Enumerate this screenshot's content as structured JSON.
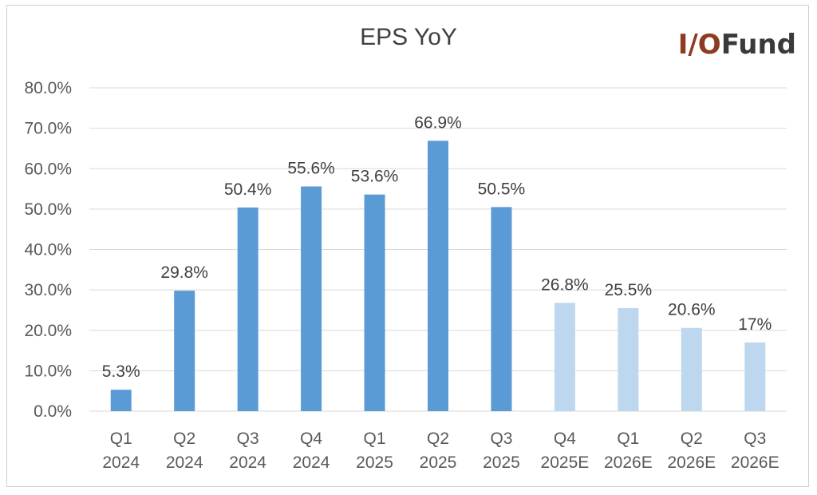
{
  "logo": {
    "part1": "I/O",
    "part2": "Fund"
  },
  "colors": {
    "actual": "#5b9bd5",
    "estimate": "#bdd7ee",
    "grid": "#d9d9d9",
    "logo_accent": "#8e3b22"
  },
  "chart_data": {
    "type": "bar",
    "title": "EPS YoY",
    "xlabel": "",
    "ylabel": "",
    "ylim": [
      0,
      80
    ],
    "yticks": [
      "0.0%",
      "10.0%",
      "20.0%",
      "30.0%",
      "40.0%",
      "50.0%",
      "60.0%",
      "70.0%",
      "80.0%"
    ],
    "grid": true,
    "legend": "none",
    "categories": [
      [
        "Q1",
        "2024"
      ],
      [
        "Q2",
        "2024"
      ],
      [
        "Q3",
        "2024"
      ],
      [
        "Q4",
        "2024"
      ],
      [
        "Q1",
        "2025"
      ],
      [
        "Q2",
        "2025"
      ],
      [
        "Q3",
        "2025"
      ],
      [
        "Q4",
        "2025E"
      ],
      [
        "Q1",
        "2026E"
      ],
      [
        "Q2",
        "2026E"
      ],
      [
        "Q3",
        "2026E"
      ]
    ],
    "values": [
      5.3,
      29.8,
      50.4,
      55.6,
      53.6,
      66.9,
      50.5,
      26.8,
      25.5,
      20.6,
      17
    ],
    "labels": [
      "5.3%",
      "29.8%",
      "50.4%",
      "55.6%",
      "53.6%",
      "66.9%",
      "50.5%",
      "26.8%",
      "25.5%",
      "20.6%",
      "17%"
    ],
    "estimate": [
      false,
      false,
      false,
      false,
      false,
      false,
      false,
      true,
      true,
      true,
      true
    ]
  }
}
